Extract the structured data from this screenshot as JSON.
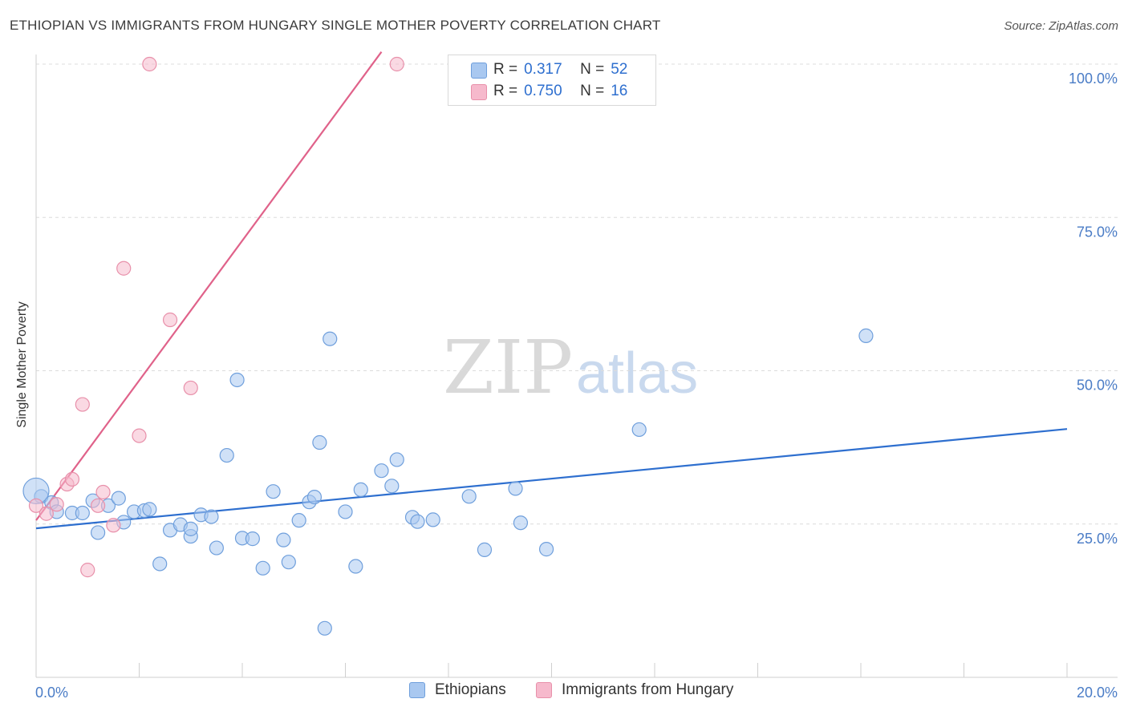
{
  "header": {
    "title": "ETHIOPIAN VS IMMIGRANTS FROM HUNGARY SINGLE MOTHER POVERTY CORRELATION CHART",
    "source": "Source: ZipAtlas.com"
  },
  "watermark": {
    "zip": "ZIP",
    "atlas": "atlas"
  },
  "legend": {
    "rows": [
      {
        "r_label": "R =",
        "r_value": "0.317",
        "n_label": "N =",
        "n_value": "52",
        "color": "#a9c8f0"
      },
      {
        "r_label": "R =",
        "r_value": "0.750",
        "n_label": "N =",
        "n_value": "16",
        "color": "#f6b9cc"
      }
    ]
  },
  "bottom_legend": {
    "items": [
      {
        "label": "Ethiopians",
        "color": "#a9c8f0"
      },
      {
        "label": "Immigrants from Hungary",
        "color": "#f6b9cc"
      }
    ]
  },
  "chart_data": {
    "type": "scatter",
    "title": "ETHIOPIAN VS IMMIGRANTS FROM HUNGARY SINGLE MOTHER POVERTY CORRELATION CHART",
    "xlabel": "",
    "ylabel": "Single Mother Poverty",
    "xlim": [
      0,
      20
    ],
    "ylim": [
      0,
      102
    ],
    "x_tick_labels": [
      "0.0%",
      "20.0%"
    ],
    "y_ticks": [
      25,
      50,
      75,
      100
    ],
    "y_tick_labels": [
      "25.0%",
      "50.0%",
      "75.0%",
      "100.0%"
    ],
    "grid": true,
    "legend_position": "top-center",
    "series": [
      {
        "name": "Ethiopians",
        "color": "#a9c8f0",
        "edge_color": "#6f9fdc",
        "line_color": "#2e6fcf",
        "R": 0.317,
        "N": 52,
        "trend": {
          "x": [
            0,
            20
          ],
          "y": [
            24.3,
            40.5
          ]
        },
        "points": [
          [
            0.1,
            29.5
          ],
          [
            0.3,
            28.5
          ],
          [
            0.4,
            27.0
          ],
          [
            0.7,
            26.8
          ],
          [
            0.9,
            26.8
          ],
          [
            1.1,
            28.8
          ],
          [
            1.2,
            23.6
          ],
          [
            1.4,
            28.0
          ],
          [
            1.6,
            29.2
          ],
          [
            1.7,
            25.3
          ],
          [
            1.9,
            27.0
          ],
          [
            2.1,
            27.2
          ],
          [
            2.2,
            27.4
          ],
          [
            2.4,
            18.5
          ],
          [
            2.6,
            24.0
          ],
          [
            2.8,
            24.9
          ],
          [
            3.0,
            23.0
          ],
          [
            3.0,
            24.2
          ],
          [
            3.2,
            26.5
          ],
          [
            3.4,
            26.2
          ],
          [
            3.5,
            21.1
          ],
          [
            3.7,
            36.2
          ],
          [
            3.9,
            48.5
          ],
          [
            4.0,
            22.7
          ],
          [
            4.2,
            22.6
          ],
          [
            4.4,
            17.8
          ],
          [
            4.6,
            30.3
          ],
          [
            4.8,
            22.4
          ],
          [
            4.9,
            18.8
          ],
          [
            5.1,
            25.6
          ],
          [
            5.3,
            28.6
          ],
          [
            5.4,
            29.4
          ],
          [
            5.5,
            38.3
          ],
          [
            5.6,
            8.0
          ],
          [
            5.7,
            55.2
          ],
          [
            6.0,
            27.0
          ],
          [
            6.2,
            18.1
          ],
          [
            6.3,
            30.6
          ],
          [
            6.7,
            33.7
          ],
          [
            6.9,
            31.2
          ],
          [
            7.0,
            35.5
          ],
          [
            7.3,
            26.1
          ],
          [
            7.4,
            25.4
          ],
          [
            7.7,
            25.7
          ],
          [
            8.4,
            29.5
          ],
          [
            8.7,
            20.8
          ],
          [
            9.3,
            30.8
          ],
          [
            9.4,
            25.2
          ],
          [
            9.9,
            20.9
          ],
          [
            11.7,
            40.4
          ],
          [
            16.1,
            55.7
          ],
          [
            0.0,
            30.4
          ]
        ]
      },
      {
        "name": "Immigrants from Hungary",
        "color": "#f6b9cc",
        "edge_color": "#e890aa",
        "line_color": "#e0628a",
        "R": 0.75,
        "N": 16,
        "trend": {
          "x": [
            0,
            6.7
          ],
          "y": [
            25.6,
            102.0
          ]
        },
        "points": [
          [
            0.0,
            28.0
          ],
          [
            0.2,
            26.7
          ],
          [
            0.4,
            28.2
          ],
          [
            0.6,
            31.5
          ],
          [
            0.7,
            32.3
          ],
          [
            0.9,
            44.5
          ],
          [
            1.0,
            17.5
          ],
          [
            1.2,
            28.0
          ],
          [
            1.3,
            30.2
          ],
          [
            1.5,
            24.8
          ],
          [
            1.7,
            66.7
          ],
          [
            2.0,
            39.4
          ],
          [
            2.2,
            100.0
          ],
          [
            2.6,
            58.3
          ],
          [
            3.0,
            47.2
          ],
          [
            7.0,
            100.0
          ]
        ]
      }
    ]
  }
}
